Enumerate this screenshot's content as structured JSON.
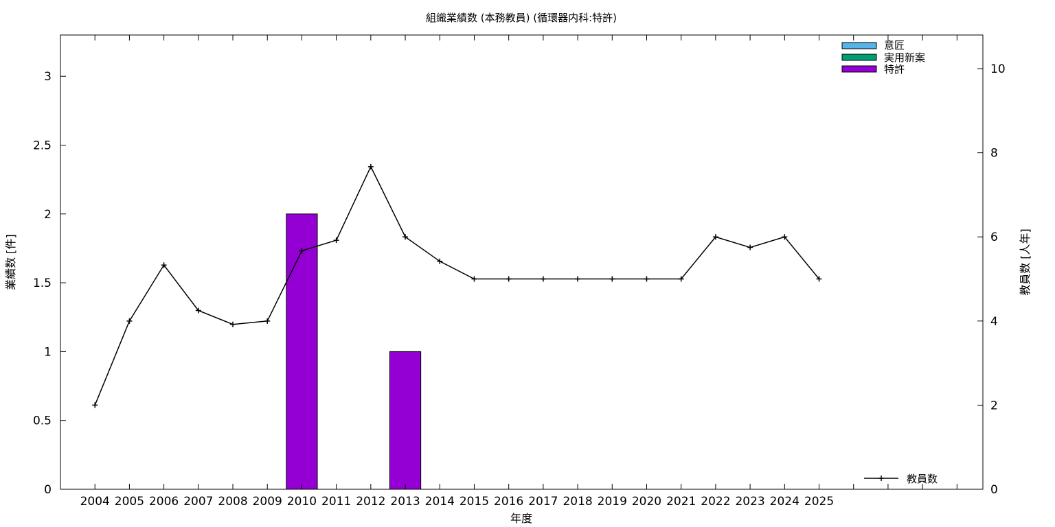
{
  "chart_data": {
    "type": "bar",
    "title": "組織業績数 (本務教員) (循環器内科:特許)",
    "xlabel": "年度",
    "ylabel": "業績数 [件]",
    "y2label": "教員数 [人年]",
    "categories": [
      "2004",
      "2005",
      "2006",
      "2007",
      "2008",
      "2009",
      "2010",
      "2011",
      "2012",
      "2013",
      "2014",
      "2015",
      "2016",
      "2017",
      "2018",
      "2019",
      "2020",
      "2021",
      "2022",
      "2023",
      "2024",
      "2025"
    ],
    "ylim": [
      0,
      3.3
    ],
    "y2lim": [
      0,
      10.8
    ],
    "yticks": [
      "0",
      "0.5",
      "1",
      "1.5",
      "2",
      "2.5",
      "3"
    ],
    "y2ticks": [
      "0",
      "2",
      "4",
      "6",
      "8",
      "10"
    ],
    "x_extra_slots": 4,
    "grid": false,
    "bar_series": [
      {
        "name": "意匠",
        "color": "#56b4e9",
        "values": [
          0,
          0,
          0,
          0,
          0,
          0,
          0,
          0,
          0,
          0,
          0,
          0,
          0,
          0,
          0,
          0,
          0,
          0,
          0,
          0,
          0,
          0
        ]
      },
      {
        "name": "実用新案",
        "color": "#009e73",
        "values": [
          0,
          0,
          0,
          0,
          0,
          0,
          0,
          0,
          0,
          0,
          0,
          0,
          0,
          0,
          0,
          0,
          0,
          0,
          0,
          0,
          0,
          0
        ]
      },
      {
        "name": "特許",
        "color": "#9400d3",
        "values": [
          0,
          0,
          0,
          0,
          0,
          0,
          2,
          0,
          0,
          1,
          0,
          0,
          0,
          0,
          0,
          0,
          0,
          0,
          0,
          0,
          0,
          0
        ]
      }
    ],
    "line_series": [
      {
        "name": "教員数",
        "color": "#000000",
        "axis": "right",
        "values": [
          2.0,
          4.0,
          5.33,
          4.25,
          3.92,
          4.0,
          5.67,
          5.92,
          7.67,
          6.0,
          5.42,
          5.0,
          5.0,
          5.0,
          5.0,
          5.0,
          5.0,
          5.0,
          6.0,
          5.75,
          6.0,
          5.0
        ]
      }
    ],
    "legend_placement": "top-right (bars), bottom-right (line)"
  }
}
